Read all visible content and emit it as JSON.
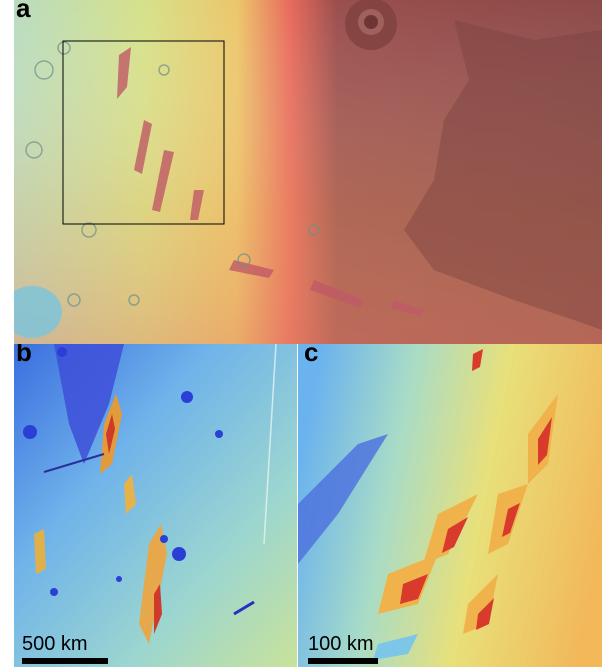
{
  "panels": {
    "a": {
      "label": "a"
    },
    "b": {
      "label": "b",
      "scale_label": "500 km"
    },
    "c": {
      "label": "c",
      "scale_label": "100 km"
    }
  },
  "colors": {
    "low": "#2a3fd6",
    "mid_low": "#5fbde0",
    "mid": "#d8e06a",
    "mid_high": "#f0a24a",
    "high": "#d23c3c",
    "plateau": "#8f4a48",
    "scale_bar": "#000000"
  }
}
